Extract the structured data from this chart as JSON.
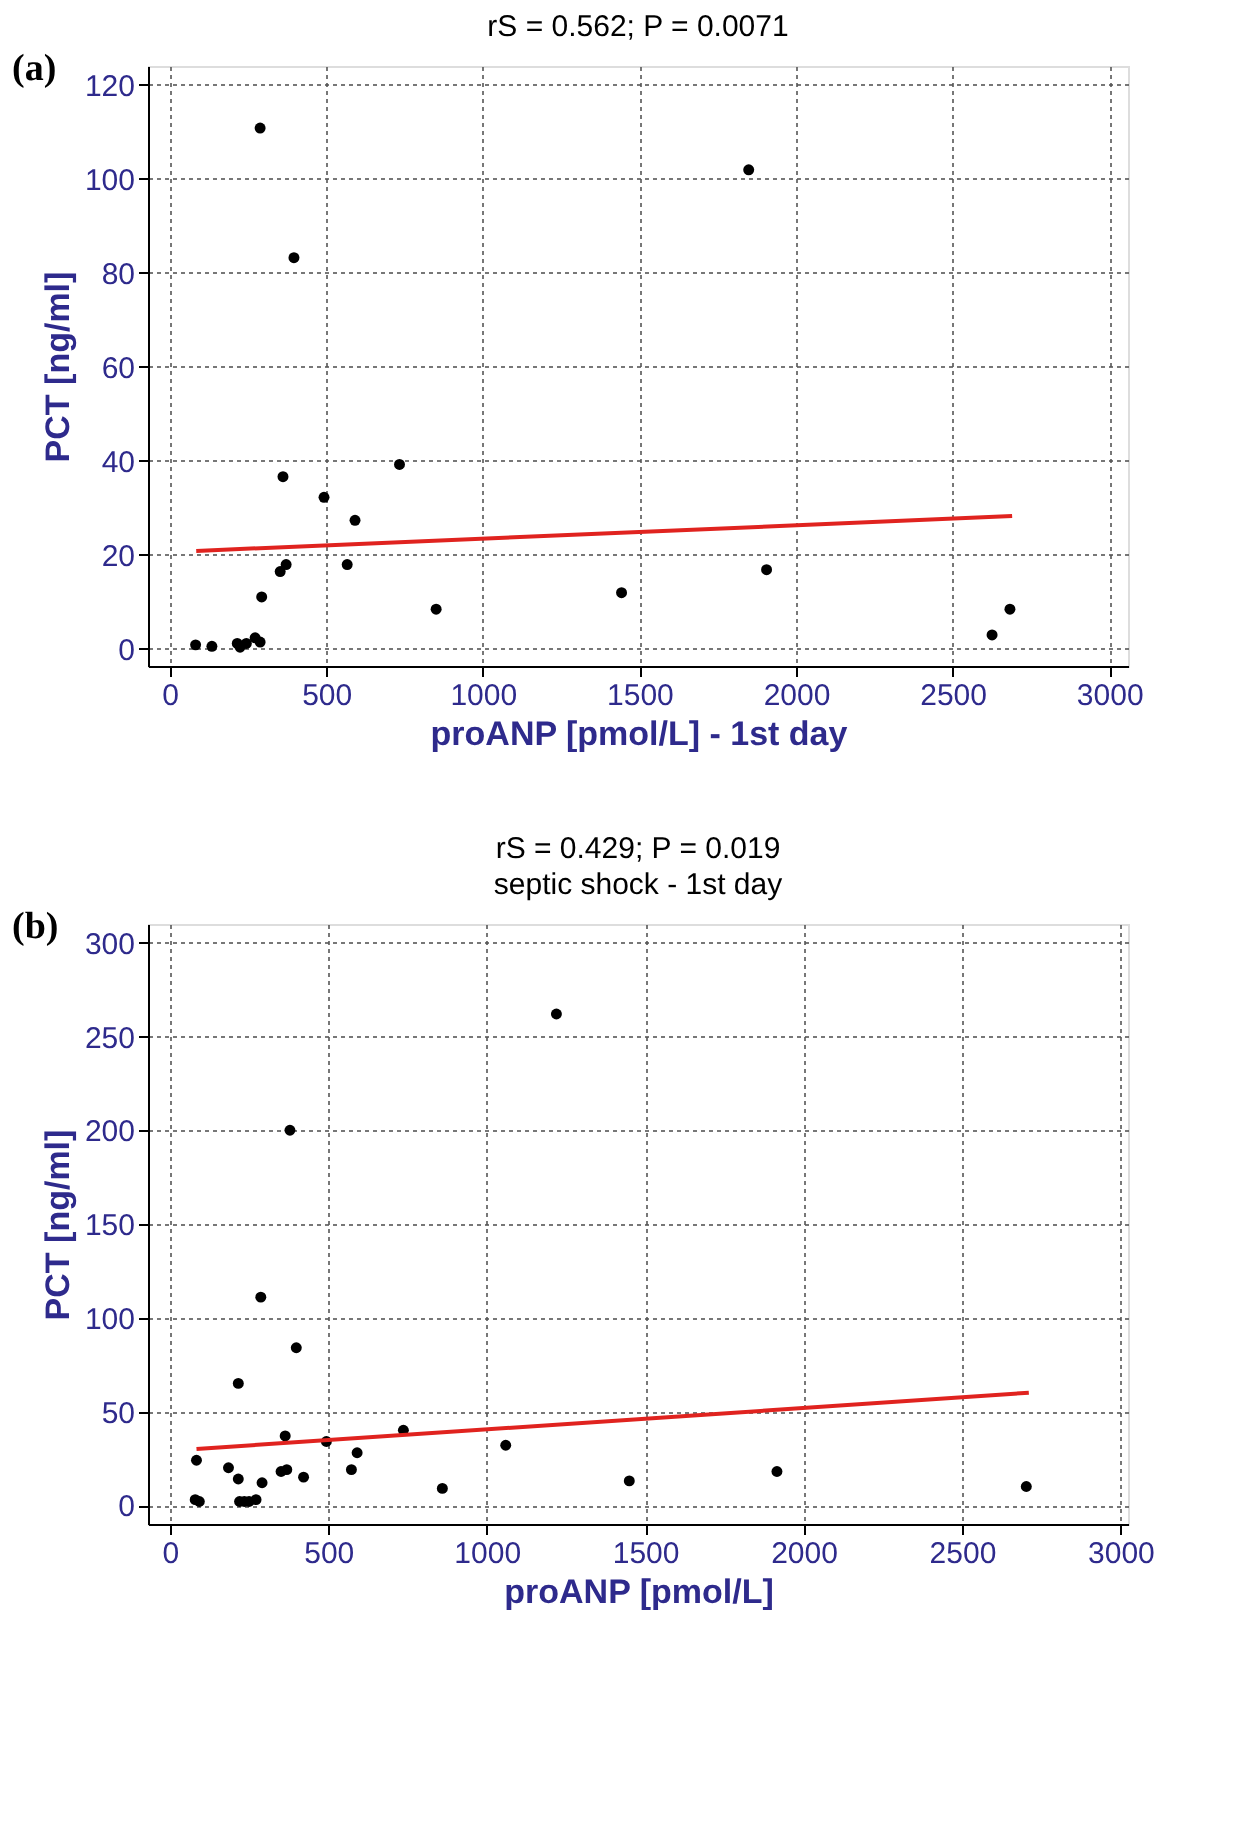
{
  "chart_data": [
    {
      "type": "scatter",
      "title": "rS = 0.562;   P = 0.0071",
      "xlabel": "proANP [pmol/L] - 1st day",
      "ylabel": "PCT [ng/ml]",
      "annotations": [
        "(a)"
      ],
      "xlim": [
        -69,
        3060
      ],
      "ylim": [
        -3.7,
        124
      ],
      "xticks": [
        0,
        500,
        1000,
        1500,
        2000,
        2500,
        3000
      ],
      "yticks": [
        0,
        20,
        40,
        60,
        80,
        100,
        120
      ],
      "grid": true,
      "series": [
        {
          "marker": "circle",
          "color": "#000000",
          "x": [
            83,
            135,
            216,
            225,
            245,
            273,
            289,
            289,
            294,
            353,
            362,
            372,
            397,
            493,
            567,
            592,
            734,
            851,
            1443,
            1849,
            1906,
            2626,
            2683
          ],
          "values": [
            0.8,
            0.5,
            1.1,
            0.3,
            1.1,
            2.3,
            1.4,
            110.8,
            11,
            16.4,
            36.6,
            17.9,
            83.2,
            32.2,
            17.9,
            27.3,
            39.2,
            8.4,
            11.9,
            101.9,
            16.8,
            2.9,
            8.4
          ]
        },
        {
          "type": "line",
          "color": "#e0231f",
          "x": [
            85,
            2690
          ],
          "values": [
            20.8,
            28.2
          ]
        }
      ]
    },
    {
      "type": "scatter",
      "title": "rS = 0.429;   P = 0.019",
      "subtitle": "septic shock - 1st day",
      "xlabel": "proANP [pmol/L]",
      "ylabel": "PCT [ng/ml]",
      "annotations": [
        "(b)"
      ],
      "xlim": [
        -69,
        3024
      ],
      "ylim": [
        -10,
        310
      ],
      "xticks": [
        0,
        500,
        1000,
        1500,
        2000,
        2500,
        3000
      ],
      "yticks": [
        0,
        50,
        100,
        150,
        200,
        250,
        300
      ],
      "grid": true,
      "series": [
        {
          "marker": "circle",
          "color": "#000000",
          "x": [
            84,
            80,
            93,
            185,
            216,
            216,
            220,
            235,
            250,
            272,
            291,
            287,
            351,
            364,
            369,
            379,
            399,
            422,
            494,
            573,
            591,
            737,
            860,
            1060,
            1220,
            1450,
            1916,
            2703
          ],
          "values": [
            24,
            3,
            2,
            20,
            65,
            14,
            2,
            2,
            2,
            3,
            12,
            111,
            18,
            37,
            19,
            200,
            84,
            15,
            34,
            19,
            28,
            40,
            9,
            32,
            262,
            13,
            18,
            10
          ]
        },
        {
          "type": "line",
          "color": "#e0231f",
          "x": [
            84,
            2711
          ],
          "values": [
            30,
            60
          ]
        }
      ]
    }
  ]
}
